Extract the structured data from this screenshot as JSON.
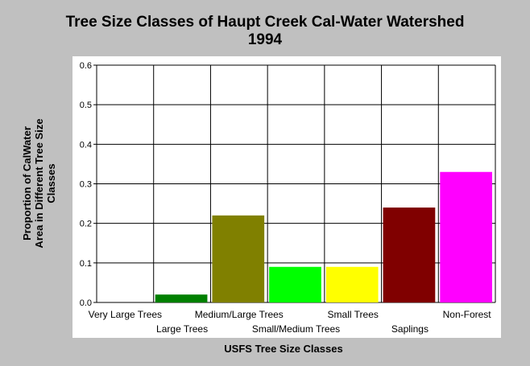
{
  "chart_data": {
    "type": "bar",
    "title_lines": [
      "Tree Size Classes of Haupt Creek Cal-Water Watershed",
      "1994"
    ],
    "xlabel": "USFS Tree Size Classes",
    "ylabel_lines": [
      "Proportion of CalWater",
      "Area in Different Tree Size",
      "Classes"
    ],
    "categories": [
      "Very Large Trees",
      "Large Trees",
      "Medium/Large Trees",
      "Small/Medium Trees",
      "Small Trees",
      "Saplings",
      "Non-Forest"
    ],
    "values": [
      0,
      0.02,
      0.22,
      0.09,
      0.09,
      0.24,
      0.33
    ],
    "colors": [
      "#808080",
      "#008000",
      "#808000",
      "#00ff00",
      "#ffff00",
      "#800000",
      "#ff00ff"
    ],
    "ylim": [
      0,
      0.6
    ],
    "yticks": [
      "0.0",
      "0.1",
      "0.2",
      "0.3",
      "0.4",
      "0.5",
      "0.6"
    ],
    "grid": true,
    "background": "#c0c0c0",
    "plot_background": "#ffffff"
  }
}
